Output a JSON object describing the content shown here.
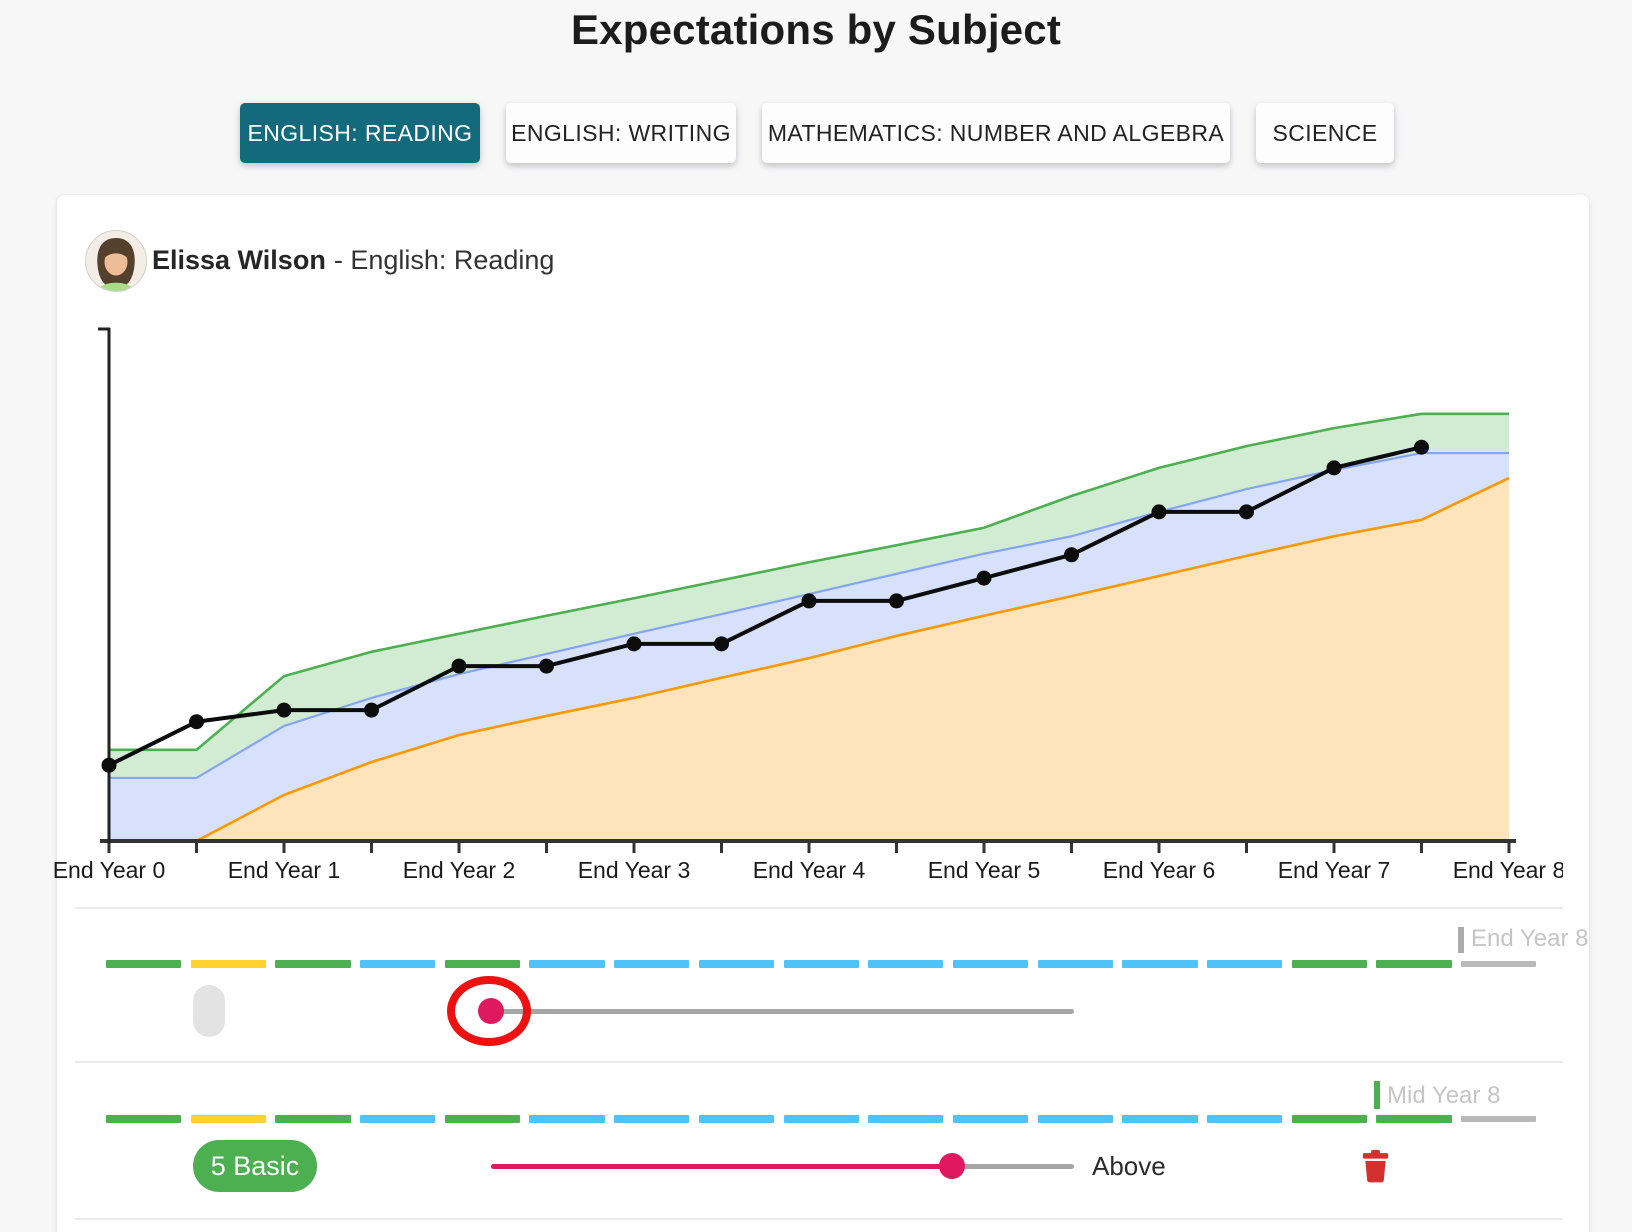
{
  "page": {
    "title": "Expectations by Subject"
  },
  "tabs": [
    {
      "label": "ENGLISH: READING",
      "active": true
    },
    {
      "label": "ENGLISH: WRITING",
      "active": false
    },
    {
      "label": "MATHEMATICS: NUMBER AND ALGEBRA",
      "active": false
    },
    {
      "label": "SCIENCE",
      "active": false
    }
  ],
  "student": {
    "name": "Elissa Wilson",
    "separator": "- ",
    "subject": "English: Reading"
  },
  "chart_data": {
    "type": "area+line",
    "title": "Elissa Wilson - English: Reading expectation bands",
    "xlabel": "",
    "ylabel": "",
    "ylim": [
      0,
      100
    ],
    "grid": false,
    "legend": "none",
    "x_axis_labels": [
      "End Year 0",
      "End Year 1",
      "End Year 2",
      "End Year 3",
      "End Year 4",
      "End Year 5",
      "End Year 6",
      "End Year 7",
      "End Year 8"
    ],
    "x_years": [
      0,
      0.5,
      1,
      1.5,
      2,
      2.5,
      3,
      3.5,
      4,
      4.5,
      5,
      5.5,
      6,
      6.5,
      7,
      7.5,
      8
    ],
    "bands": {
      "green_top": [
        17.2,
        17.2,
        31.1,
        35.7,
        39.1,
        42.5,
        45.8,
        49.2,
        52.6,
        55.8,
        59.1,
        65.1,
        70.4,
        74.5,
        77.9,
        80.6,
        80.6
      ],
      "blue_top": [
        11.9,
        11.9,
        21.7,
        27.0,
        31.5,
        35.3,
        39.1,
        42.8,
        46.6,
        50.4,
        54.2,
        57.5,
        62.1,
        66.4,
        70.0,
        73.2,
        73.2
      ],
      "orange_top": [
        0,
        0,
        8.7,
        14.9,
        20.0,
        23.6,
        27.0,
        30.8,
        34.5,
        38.7,
        42.5,
        46.2,
        50.0,
        53.8,
        57.5,
        60.6,
        68.5
      ],
      "green_stroke": "#4caf50",
      "green_fill": "rgba(76,175,80,0.25)",
      "blue_stroke": "#84a4f4",
      "blue_fill": "rgba(112,148,245,0.28)",
      "orange_stroke": "#ff9800",
      "orange_fill": "rgba(255,152,0,0.27)"
    },
    "student_series": {
      "name": "Elissa Wilson - English: Reading",
      "x_years": [
        0,
        0.5,
        1,
        1.5,
        2,
        2.5,
        3,
        3.5,
        4,
        4.5,
        5,
        5.5,
        6,
        6.5,
        7,
        7.5
      ],
      "values": [
        14.3,
        22.5,
        24.7,
        24.7,
        33.0,
        33.0,
        37.2,
        37.2,
        45.3,
        45.3,
        49.6,
        54.0,
        62.1,
        62.1,
        70.4,
        74.3
      ]
    }
  },
  "colors": {
    "green": "#4caf50",
    "yellow": "#fdd22e",
    "blue": "#4fc3f7",
    "gray": "#b9b9b9",
    "pink": "#e0195e",
    "track_gray": "#a6a6a6",
    "annotation_red": "#ee1111",
    "trash_red": "#d32f2f"
  },
  "timeline_rows": [
    {
      "marker": {
        "label": "End Year 8",
        "color": "#ababab"
      },
      "dashes": [
        "green",
        "yellow",
        "green",
        "blue",
        "green",
        "blue",
        "blue",
        "blue",
        "blue",
        "blue",
        "blue",
        "blue",
        "blue",
        "blue",
        "green",
        "green",
        "gray"
      ],
      "badge": {
        "text": "",
        "style": "empty-gray"
      },
      "slider": {
        "handle_position_frac": 0,
        "filled_frac": 0,
        "annotated": true
      },
      "value_label": ""
    },
    {
      "marker": {
        "label": "Mid Year 8",
        "color": "#4caf50"
      },
      "dashes": [
        "green",
        "yellow",
        "green",
        "blue",
        "green",
        "blue",
        "blue",
        "blue",
        "blue",
        "blue",
        "blue",
        "blue",
        "blue",
        "blue",
        "green",
        "green",
        "gray"
      ],
      "badge": {
        "text": "5 Basic",
        "style": "green"
      },
      "slider": {
        "handle_position_frac": 0.79,
        "filled_frac": 0.79,
        "annotated": false
      },
      "value_label": "Above"
    }
  ]
}
